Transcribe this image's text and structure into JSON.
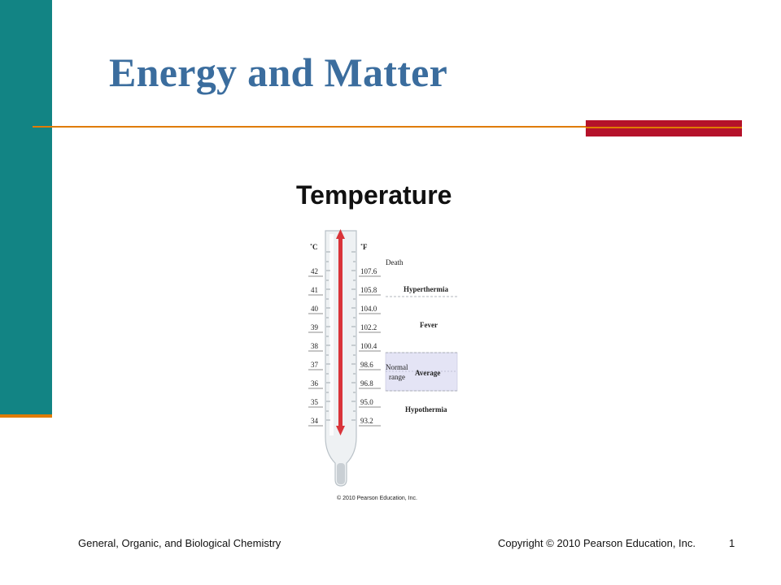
{
  "slide": {
    "title": "Energy and Matter",
    "subtitle": "Temperature"
  },
  "thermometer": {
    "celsius_unit": "˚C",
    "fahrenheit_unit": "˚F",
    "rows": [
      {
        "c": "42",
        "f": "107.6"
      },
      {
        "c": "41",
        "f": "105.8"
      },
      {
        "c": "40",
        "f": "104.0"
      },
      {
        "c": "39",
        "f": "102.2"
      },
      {
        "c": "38",
        "f": "100.4"
      },
      {
        "c": "37",
        "f": "98.6"
      },
      {
        "c": "36",
        "f": "96.8"
      },
      {
        "c": "35",
        "f": "95.0"
      },
      {
        "c": "34",
        "f": "93.2"
      }
    ],
    "labels": {
      "death": "Death",
      "hyperthermia": "Hyperthermia",
      "fever": "Fever",
      "normal": "Normal",
      "range": "range",
      "average": "Average",
      "hypothermia": "Hypothermia"
    },
    "copyright": "© 2010 Pearson Education, Inc."
  },
  "footer": {
    "left": "General, Organic, and Biological Chemistry",
    "right": "Copyright © 2010 Pearson Education, Inc.",
    "page": "1"
  },
  "colors": {
    "teal": "#128484",
    "orange": "#e07b00",
    "red": "#b5122a",
    "title_blue": "#3b6d9e",
    "arrow_red": "#d9343a"
  }
}
